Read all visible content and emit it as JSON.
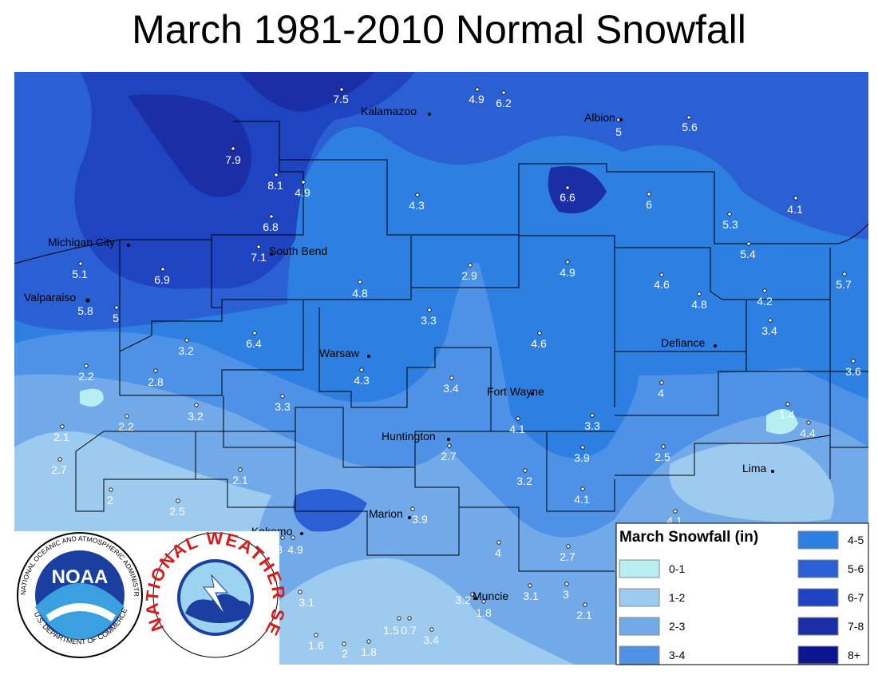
{
  "header": {
    "title": "March 1981-2010 Normal Snowfall"
  },
  "cities": [
    "Kalamazoo",
    "Albion",
    "Michigan City",
    "South Bend",
    "Valparaiso",
    "Warsaw",
    "Defiance",
    "Fort Wayne",
    "Huntington",
    "Lima",
    "Marion",
    "Kokomo",
    "Muncie"
  ],
  "stations": [
    7.5,
    4.9,
    6.2,
    5,
    5.6,
    7.9,
    8.1,
    4.9,
    4.3,
    6.6,
    6,
    5.3,
    4.1,
    6.8,
    7.1,
    5.1,
    6.9,
    2.9,
    4.9,
    4.6,
    5.4,
    5.7,
    4.8,
    4.8,
    4.2,
    5.8,
    5,
    3.3,
    3.4,
    3.2,
    6.4,
    4.6,
    3.6,
    2.2,
    2.8,
    4.3,
    3.4,
    4,
    3.2,
    3.3,
    2.2,
    1.4,
    4.1,
    3.3,
    4.4,
    2.1,
    2.7,
    3.9,
    2.5,
    2.7,
    2.1,
    3.2,
    2,
    2.5,
    4.1,
    4.1,
    3.9,
    3,
    4.9,
    4,
    2.7,
    3.1,
    3.2,
    1.8,
    3.1,
    3,
    2.1,
    1.5,
    0.7,
    3.4,
    1.6,
    2,
    1.8
  ],
  "legend": {
    "title": "March Snowfall (in)",
    "items": [
      {
        "label": "0-1",
        "color": "#b6eef2"
      },
      {
        "label": "1-2",
        "color": "#9ccbef"
      },
      {
        "label": "2-3",
        "color": "#72a9e8"
      },
      {
        "label": "3-4",
        "color": "#4d92e6"
      },
      {
        "label": "4-5",
        "color": "#2e7fe2"
      },
      {
        "label": "5-6",
        "color": "#2a60d4"
      },
      {
        "label": "6-7",
        "color": "#1f44c2"
      },
      {
        "label": "7-8",
        "color": "#1a2ea6"
      },
      {
        "label": "8+",
        "color": "#0b1690"
      }
    ]
  },
  "logos": {
    "noaa": "NOAA",
    "noaa_ring_top": "NATIONAL OCEANIC AND ATMOSPHERIC ADMINISTRATION",
    "noaa_ring_bottom": "U.S. DEPARTMENT OF COMMERCE",
    "nws": "NATIONAL WEATHER SERVICE"
  }
}
